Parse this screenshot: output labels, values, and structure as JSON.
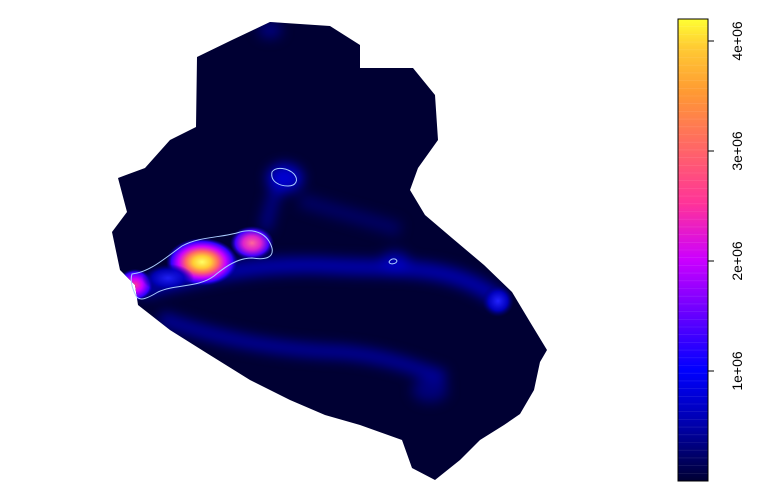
{
  "chart_data": {
    "type": "heatmap",
    "title": "",
    "xlabel": "",
    "ylabel": "",
    "description_values": {
      "colorbar_min": 0,
      "colorbar_max": 4200000
    },
    "colorbar": {
      "ticks": [
        {
          "value": 1000000,
          "label": "1e+06"
        },
        {
          "value": 2000000,
          "label": "2e+06"
        },
        {
          "value": 3000000,
          "label": "3e+06"
        },
        {
          "value": 4000000,
          "label": "4e+06"
        }
      ],
      "color_stops": [
        "#000033",
        "#0000aa",
        "#0000ff",
        "#6600ff",
        "#cc00ff",
        "#ff3399",
        "#ff6666",
        "#ff9933",
        "#ffcc33",
        "#ffff33"
      ]
    },
    "hotspots": [
      {
        "name": "main-peak",
        "value": 4000000
      },
      {
        "name": "secondary-peak",
        "value": 2500000
      },
      {
        "name": "west-edge-peak",
        "value": 2300000
      }
    ],
    "contour_level": 1200000,
    "colors": {
      "background": "#000033",
      "contour": "#aaccff"
    }
  }
}
